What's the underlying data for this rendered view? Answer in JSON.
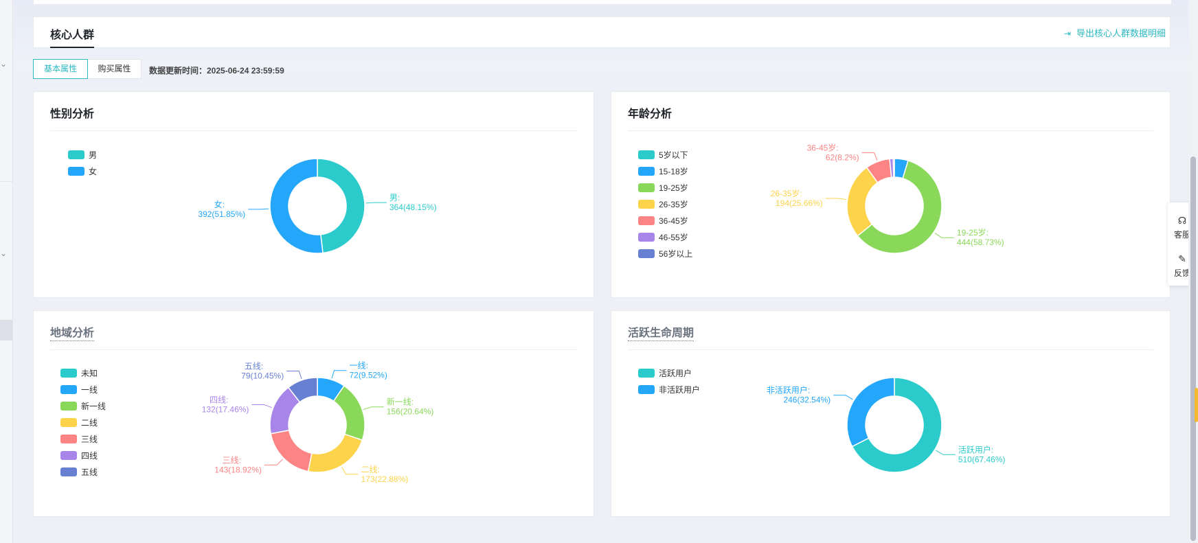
{
  "header": {
    "title": "核心人群",
    "export_label": "导出核心人群数据明细"
  },
  "tabs": [
    {
      "label": "基本属性",
      "active": true
    },
    {
      "label": "购买属性",
      "active": false
    }
  ],
  "update_time": "数据更新时间：2025-06-24 23:59:59",
  "float_panel": {
    "service_label": "客服",
    "feedback_label": "反馈"
  },
  "cards": {
    "gender": {
      "title": "性别分析"
    },
    "age": {
      "title": "年龄分析"
    },
    "region": {
      "title": "地域分析"
    },
    "lifecycle": {
      "title": "活跃生命周期"
    }
  },
  "chart_data": [
    {
      "id": "gender",
      "type": "pie",
      "title": "性别分析",
      "legend": [
        "男",
        "女"
      ],
      "slices": [
        {
          "name": "男",
          "value": 364,
          "label": "364(48.15%)",
          "color": "#2bcbcb"
        },
        {
          "name": "女",
          "value": 392,
          "label": "392(51.85%)",
          "color": "#24a7fa"
        }
      ]
    },
    {
      "id": "age",
      "type": "pie",
      "title": "年龄分析",
      "legend": [
        "5岁以下",
        "15-18岁",
        "19-25岁",
        "26-35岁",
        "36-45岁",
        "46-55岁",
        "56岁以上"
      ],
      "legend_colors": [
        "#2bcbcb",
        "#24a7fa",
        "#8ad85a",
        "#fdd34c",
        "#fd8484",
        "#a885e8",
        "#6880d2"
      ],
      "slices": [
        {
          "name": "5岁以下",
          "value": 0,
          "label": "",
          "color": "#2bcbcb"
        },
        {
          "name": "15-18岁",
          "value": 35,
          "label": "",
          "color": "#24a7fa"
        },
        {
          "name": "19-25岁",
          "value": 444,
          "label": "444(58.73%)",
          "color": "#8ad85a"
        },
        {
          "name": "26-35岁",
          "value": 194,
          "label": "194(25.66%)",
          "color": "#fdd34c"
        },
        {
          "name": "36-45岁",
          "value": 62,
          "label": "62(8.2%)",
          "color": "#fd8484"
        },
        {
          "name": "46-55岁",
          "value": 9,
          "label": "",
          "color": "#a885e8"
        },
        {
          "name": "56岁以上",
          "value": 3,
          "label": "",
          "color": "#6880d2"
        }
      ]
    },
    {
      "id": "region",
      "type": "pie",
      "title": "地域分析",
      "legend": [
        "未知",
        "一线",
        "新一线",
        "二线",
        "三线",
        "四线",
        "五线"
      ],
      "legend_colors": [
        "#2bcbcb",
        "#24a7fa",
        "#8ad85a",
        "#fdd34c",
        "#fd8484",
        "#a885e8",
        "#6880d2"
      ],
      "slices": [
        {
          "name": "未知",
          "value": 0,
          "label": "",
          "color": "#2bcbcb"
        },
        {
          "name": "一线",
          "value": 72,
          "label": "72(9.52%)",
          "color": "#24a7fa"
        },
        {
          "name": "新一线",
          "value": 156,
          "label": "156(20.64%)",
          "color": "#8ad85a"
        },
        {
          "name": "二线",
          "value": 173,
          "label": "173(22.88%)",
          "color": "#fdd34c"
        },
        {
          "name": "三线",
          "value": 143,
          "label": "143(18.92%)",
          "color": "#fd8484"
        },
        {
          "name": "四线",
          "value": 132,
          "label": "132(17.46%)",
          "color": "#a885e8"
        },
        {
          "name": "五线",
          "value": 79,
          "label": "79(10.45%)",
          "color": "#6880d2"
        }
      ]
    },
    {
      "id": "lifecycle",
      "type": "pie",
      "title": "活跃生命周期",
      "legend": [
        "活跃用户",
        "非活跃用户"
      ],
      "slices": [
        {
          "name": "活跃用户",
          "value": 510,
          "label": "510(67.46%)",
          "color": "#2bcbcb"
        },
        {
          "name": "非活跃用户",
          "value": 246,
          "label": "246(32.54%)",
          "color": "#24a7fa"
        }
      ]
    }
  ]
}
